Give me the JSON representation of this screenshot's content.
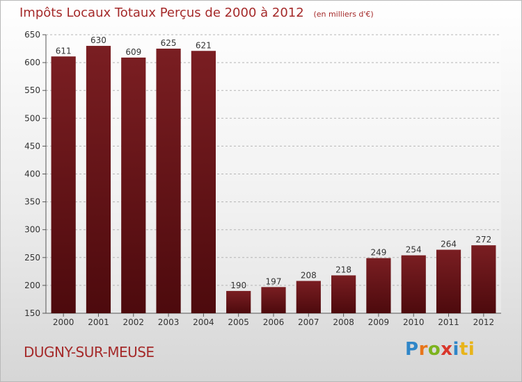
{
  "header": {
    "title": "Impôts Locaux Totaux Perçus de 2000 à 2012",
    "unit": "(en milliers d'€)"
  },
  "footer": {
    "place": "DUGNY-SUR-MEUSE",
    "logo": "Proxiti",
    "logo_letters": [
      "P",
      "r",
      "o",
      "x",
      "i",
      "ti"
    ]
  },
  "colors": {
    "bar": "#7a1e22",
    "bar_dark": "#4d0a0d",
    "title": "#a52a2a"
  },
  "chart_data": {
    "type": "bar",
    "title": "Impôts Locaux Totaux Perçus de 2000 à 2012",
    "xlabel": "",
    "ylabel": "",
    "categories": [
      "2000",
      "2001",
      "2002",
      "2003",
      "2004",
      "2005",
      "2006",
      "2007",
      "2008",
      "2009",
      "2010",
      "2011",
      "2012"
    ],
    "values": [
      611,
      630,
      609,
      625,
      621,
      190,
      197,
      208,
      218,
      249,
      254,
      264,
      272
    ],
    "ylim": [
      150,
      650
    ],
    "yticks": [
      150,
      200,
      250,
      300,
      350,
      400,
      450,
      500,
      550,
      600,
      650
    ],
    "grid": true
  }
}
